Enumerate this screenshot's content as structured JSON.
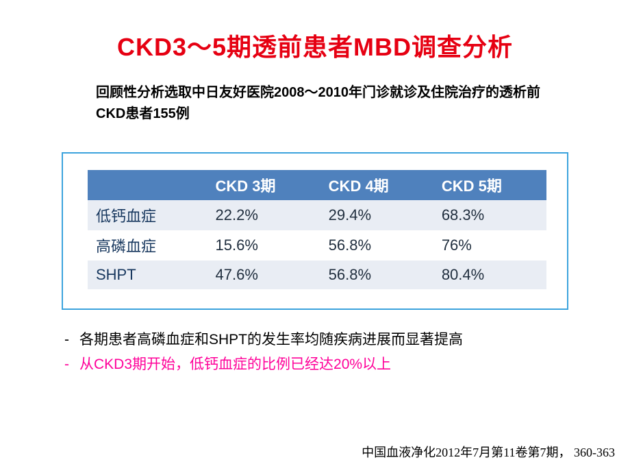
{
  "title": "CKD3～5期透前患者MBD调查分析",
  "subtitle": "回顾性分析选取中日友好医院2008～2010年门诊就诊及住院治疗的透析前CKD患者155例",
  "table": {
    "columns": [
      "CKD 3期",
      "CKD 4期",
      "CKD 5期"
    ],
    "rows": [
      {
        "label": "低钙血症",
        "vals": [
          "22.2%",
          "29.4%",
          "68.3%"
        ]
      },
      {
        "label": "高磷血症",
        "vals": [
          "15.6%",
          "56.8%",
          "76%"
        ]
      },
      {
        "label": "SHPT",
        "vals": [
          "47.6%",
          "56.8%",
          "80.4%"
        ]
      }
    ],
    "header_bg": "#4f81bd",
    "header_fg": "#ffffff",
    "band_bg": "#e9edf4",
    "rowlabel_color": "#17375e",
    "border_color": "#3ba3dd",
    "fontsize": 22
  },
  "notes": {
    "line1": "各期患者高磷血症和SHPT的发生率均随疾病进展而显著提高",
    "line2": "从CKD3期开始，低钙血症的比例已经达20%以上",
    "line1_color": "#000000",
    "line2_color": "#ff0099"
  },
  "citation": "中国血液净化2012年7月第11卷第7期，  360-363",
  "colors": {
    "title": "#e60012",
    "background": "#ffffff"
  }
}
